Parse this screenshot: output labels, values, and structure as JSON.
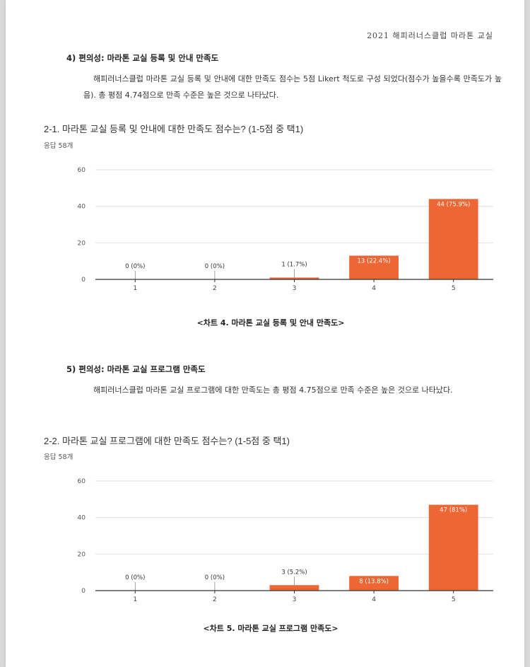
{
  "header": {
    "running_title": "2021 해피러너스클럽 마라톤 교실"
  },
  "sections": [
    {
      "title": "4)  편의성: 마라톤 교실 등록 및 안내 만족도",
      "paragraph": "해피러너스클럽 마라톤 교실 등록 및 안내에 대한 만족도 점수는 5점 Likert 척도로 구성 되었다(점수가 높을수록 만족도가 높음). 총 평점 4.74점으로 만족 수준은 높은 것으로 나타났다.",
      "question": "2-1. 마라톤 교실 등록 및 안내에 대한 만족도 점수는? (1-5점 중 택1)",
      "responses": "응답 58개",
      "caption": "<차트 4. 마라톤 교실 등록 및 안내 만족도>"
    },
    {
      "title": "5)  편의성: 마라톤 교실 프로그램 만족도",
      "paragraph": "해피러너스클럽 마라톤 교실 프로그램에 대한 만족도는 총 평점 4.75점으로 만족 수준은 높은 것으로 나타났다.",
      "question": "2-2. 마라톤 교실 프로그램에 대한 만족도 점수는? (1-5점 중 택1)",
      "responses": "응답 58개",
      "caption": "<차트 5. 마라톤 교실 프로그램 만족도>"
    }
  ],
  "colors": {
    "bar": "#ee6633",
    "grid": "#e3e3e3",
    "axis": "#333333"
  },
  "chart_data": [
    {
      "type": "bar",
      "categories": [
        "1",
        "2",
        "3",
        "4",
        "5"
      ],
      "values": [
        0,
        0,
        1,
        13,
        44
      ],
      "data_labels": [
        "0 (0%)",
        "0 (0%)",
        "1 (1.7%)",
        "13 (22.4%)",
        "44 (75.9%)"
      ],
      "yticks": [
        0,
        20,
        40,
        60
      ],
      "ylim": [
        0,
        60
      ],
      "grid": true
    },
    {
      "type": "bar",
      "categories": [
        "1",
        "2",
        "3",
        "4",
        "5"
      ],
      "values": [
        0,
        0,
        3,
        8,
        47
      ],
      "data_labels": [
        "0 (0%)",
        "0 (0%)",
        "3 (5.2%)",
        "8 (13.8%)",
        "47 (81%)"
      ],
      "yticks": [
        0,
        20,
        40,
        60
      ],
      "ylim": [
        0,
        60
      ],
      "grid": true
    }
  ]
}
